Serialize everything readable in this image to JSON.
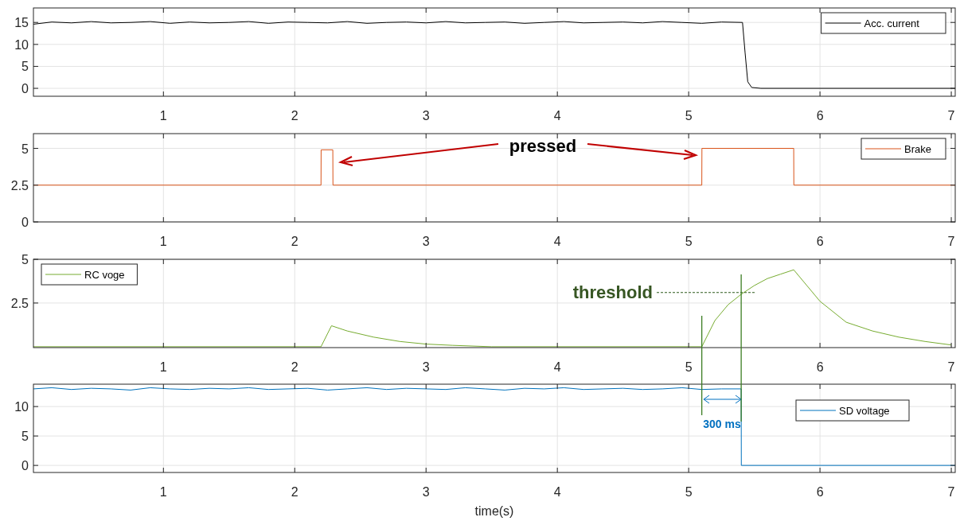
{
  "chart_data": [
    {
      "type": "line",
      "xlim": [
        0.01,
        7.03
      ],
      "xticks": [
        1,
        2,
        3,
        4,
        5,
        6,
        7
      ],
      "ylim": [
        -1.8,
        18.3
      ],
      "yticks": [
        0,
        5,
        10,
        15
      ],
      "grid": true,
      "legend": "top right",
      "series": [
        {
          "name": "Acc. current",
          "color": "#000000",
          "x": [
            0.01,
            0.15,
            0.3,
            0.45,
            0.6,
            0.75,
            0.9,
            1.05,
            1.2,
            1.35,
            1.5,
            1.65,
            1.8,
            1.95,
            2.1,
            2.25,
            2.4,
            2.55,
            2.7,
            2.85,
            3.0,
            3.15,
            3.3,
            3.45,
            3.6,
            3.75,
            3.9,
            4.05,
            4.2,
            4.35,
            4.5,
            4.65,
            4.8,
            4.95,
            5.1,
            5.25,
            5.41,
            5.43,
            5.45,
            5.48,
            5.55,
            7.03
          ],
          "values": [
            14.6,
            15.1,
            14.9,
            15.2,
            14.9,
            15.0,
            15.2,
            14.8,
            15.1,
            14.9,
            15.0,
            15.2,
            14.8,
            15.1,
            15.0,
            14.9,
            15.2,
            14.8,
            15.0,
            15.1,
            14.9,
            15.2,
            14.9,
            15.0,
            15.1,
            14.8,
            15.0,
            15.2,
            14.9,
            15.0,
            15.1,
            14.9,
            15.2,
            15.0,
            14.8,
            15.1,
            15.0,
            8,
            1.5,
            0.2,
            0,
            0
          ]
        }
      ]
    },
    {
      "type": "line",
      "xlim": [
        0.01,
        7.03
      ],
      "xticks": [
        1,
        2,
        3,
        4,
        5,
        6,
        7
      ],
      "ylim": [
        0,
        6
      ],
      "yticks": [
        0,
        2.5,
        5
      ],
      "grid": true,
      "legend": "top right",
      "annotations": [
        "pressed"
      ],
      "series": [
        {
          "name": "Brake",
          "color": "#d95319",
          "x": [
            0.01,
            2.2,
            2.201,
            2.29,
            2.291,
            5.1,
            5.101,
            5.8,
            5.801,
            7.03
          ],
          "values": [
            2.5,
            2.5,
            4.9,
            4.9,
            2.5,
            2.5,
            5,
            5,
            2.5,
            2.5
          ]
        }
      ]
    },
    {
      "type": "line",
      "xlim": [
        0.01,
        7.03
      ],
      "xticks": [
        1,
        2,
        3,
        4,
        5,
        6,
        7
      ],
      "ylim": [
        -0.05,
        5
      ],
      "yticks": [
        2.5,
        5
      ],
      "grid": true,
      "legend": "top left",
      "annotations": [
        "threshold"
      ],
      "series": [
        {
          "name": "RC voge",
          "color": "#77ac30",
          "x": [
            0.01,
            2.2,
            2.28,
            2.4,
            2.6,
            2.8,
            3.0,
            3.2,
            3.5,
            5.1,
            5.2,
            5.3,
            5.4,
            5.5,
            5.6,
            5.7,
            5.8,
            5.9,
            6.0,
            6.2,
            6.4,
            6.6,
            6.8,
            7.0
          ],
          "values": [
            0,
            0,
            1.2,
            0.9,
            0.55,
            0.3,
            0.15,
            0.08,
            0,
            0,
            1.5,
            2.4,
            3.0,
            3.5,
            3.9,
            4.15,
            4.4,
            3.5,
            2.6,
            1.4,
            0.9,
            0.55,
            0.3,
            0.1
          ]
        }
      ]
    },
    {
      "type": "line",
      "xlim": [
        0.01,
        7.03
      ],
      "xticks": [
        1,
        2,
        3,
        4,
        5,
        6,
        7
      ],
      "ylim": [
        -1.2,
        13.8
      ],
      "yticks": [
        0,
        5,
        10
      ],
      "grid": true,
      "legend": "right",
      "xlabel": "time(s)",
      "annotations": [
        "300 ms"
      ],
      "ref_lines": [
        {
          "axis": "x",
          "value": 5.1,
          "color": "#3b7d23"
        },
        {
          "axis": "x",
          "value": 5.4,
          "color": "#3b7d23"
        }
      ],
      "series": [
        {
          "name": "SD voltage",
          "color": "#0072bd",
          "x": [
            0.01,
            0.15,
            0.3,
            0.45,
            0.6,
            0.75,
            0.9,
            1.05,
            1.2,
            1.35,
            1.5,
            1.65,
            1.8,
            1.95,
            2.1,
            2.25,
            2.4,
            2.55,
            2.7,
            2.85,
            3.0,
            3.15,
            3.3,
            3.45,
            3.6,
            3.75,
            3.9,
            4.05,
            4.2,
            4.35,
            4.5,
            4.65,
            4.8,
            4.95,
            5.1,
            5.25,
            5.4,
            5.401,
            7.03
          ],
          "values": [
            13.0,
            13.2,
            12.9,
            13.1,
            13.0,
            12.8,
            13.2,
            13.0,
            12.9,
            13.1,
            13.0,
            13.2,
            12.9,
            13.0,
            13.1,
            12.8,
            13.0,
            13.2,
            12.9,
            13.1,
            13.0,
            12.9,
            13.2,
            13.0,
            12.8,
            13.1,
            13.0,
            13.2,
            12.9,
            13.0,
            13.1,
            12.9,
            13.0,
            13.2,
            12.9,
            13.0,
            13.0,
            0,
            0
          ]
        }
      ]
    }
  ]
}
